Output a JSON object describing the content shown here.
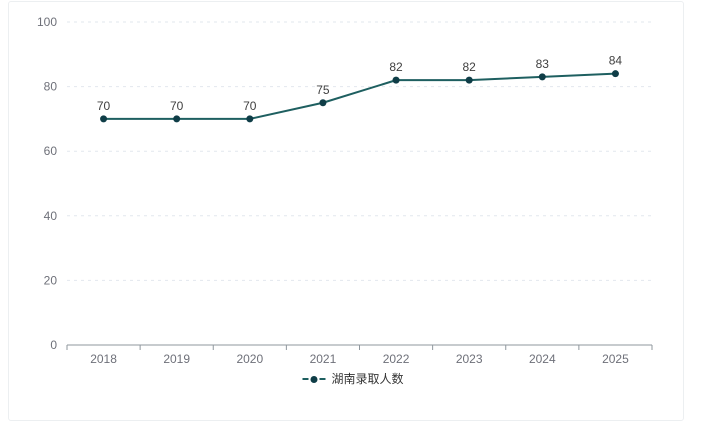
{
  "chart_data": {
    "type": "line",
    "categories": [
      "2018",
      "2019",
      "2020",
      "2021",
      "2022",
      "2023",
      "2024",
      "2025"
    ],
    "series": [
      {
        "name": "湖南录取人数",
        "values": [
          70,
          70,
          70,
          75,
          82,
          82,
          83,
          84
        ]
      }
    ],
    "title": "",
    "xlabel": "",
    "ylabel": "",
    "ylim": [
      0,
      100
    ],
    "yticks": [
      0,
      20,
      40,
      60,
      80,
      100
    ],
    "grid": true,
    "gridline_style": "dashed",
    "legend_position": "bottom-center",
    "data_labels_shown": true,
    "colors": {
      "line": "#1e5f60",
      "marker": "#0f3d47",
      "data_label": "#3f3f3f",
      "axis_tick_label": "#6e7079",
      "axis_line": "#8f979e",
      "gridline": "#e2e7ee",
      "legend_text": "#333333",
      "panel_border": "#eceff1",
      "background": "#ffffff"
    }
  }
}
